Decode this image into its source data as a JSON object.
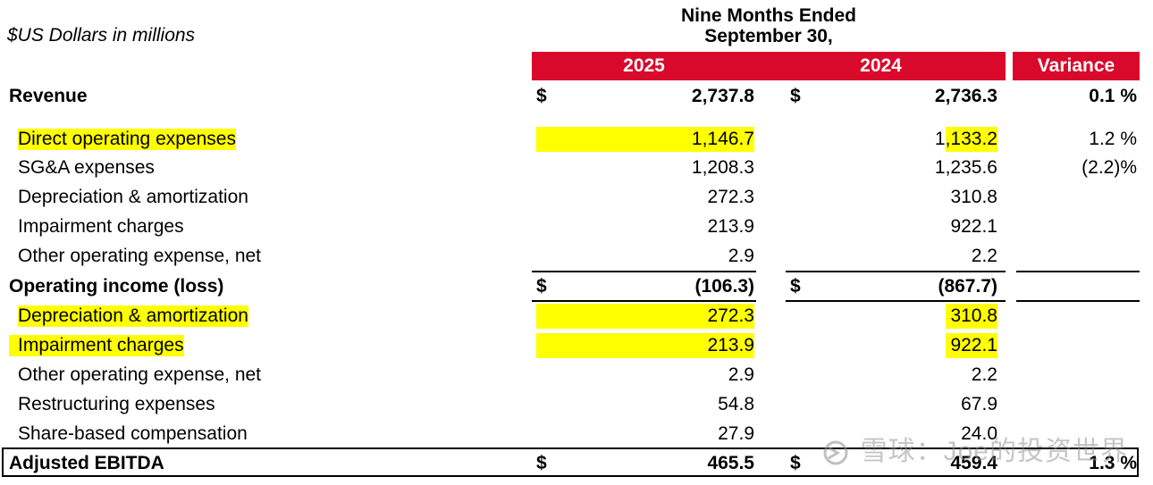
{
  "units_label": "$US Dollars in millions",
  "period_label_line1": "Nine Months Ended",
  "period_label_line2": "September 30,",
  "columns": {
    "y2025": "2025",
    "y2024": "2024",
    "variance": "Variance"
  },
  "currency_symbol": "$",
  "rows": [
    {
      "label": "Revenue",
      "v2025": "2,737.8",
      "v2024": "2,736.3",
      "variance": "0.1 %"
    },
    {
      "label": "Direct operating expenses",
      "v2025": "1,146.7",
      "v2024": "1,133.2",
      "variance": "1.2 %"
    },
    {
      "label": "SG&A expenses",
      "v2025": "1,208.3",
      "v2024": "1,235.6",
      "variance": "(2.2)%"
    },
    {
      "label": "Depreciation & amortization",
      "v2025": "272.3",
      "v2024": "310.8"
    },
    {
      "label": "Impairment charges",
      "v2025": "213.9",
      "v2024": "922.1"
    },
    {
      "label": "Other operating expense, net",
      "v2025": "2.9",
      "v2024": "2.2"
    },
    {
      "label": "Operating income (loss)",
      "v2025": "(106.3)",
      "v2024": "(867.7)"
    },
    {
      "label": "Depreciation & amortization",
      "v2025": "272.3",
      "v2024": "310.8"
    },
    {
      "label": "Impairment charges",
      "v2025": "213.9",
      "v2024": "922.1"
    },
    {
      "label": "Other operating expense, net",
      "v2025": "2.9",
      "v2024": "2.2"
    },
    {
      "label": "Restructuring expenses",
      "v2025": "54.8",
      "v2024": "67.9"
    },
    {
      "label": "Share-based compensation",
      "v2025": "27.9",
      "v2024": "24.0"
    },
    {
      "label": "Adjusted EBITDA",
      "v2025": "465.5",
      "v2024": "459.4",
      "variance": "1.3 %"
    }
  ],
  "watermark": "雪球：Joe的投资世界",
  "colors": {
    "header_red": "#d9092b",
    "highlight_yellow": "#ffff00"
  }
}
